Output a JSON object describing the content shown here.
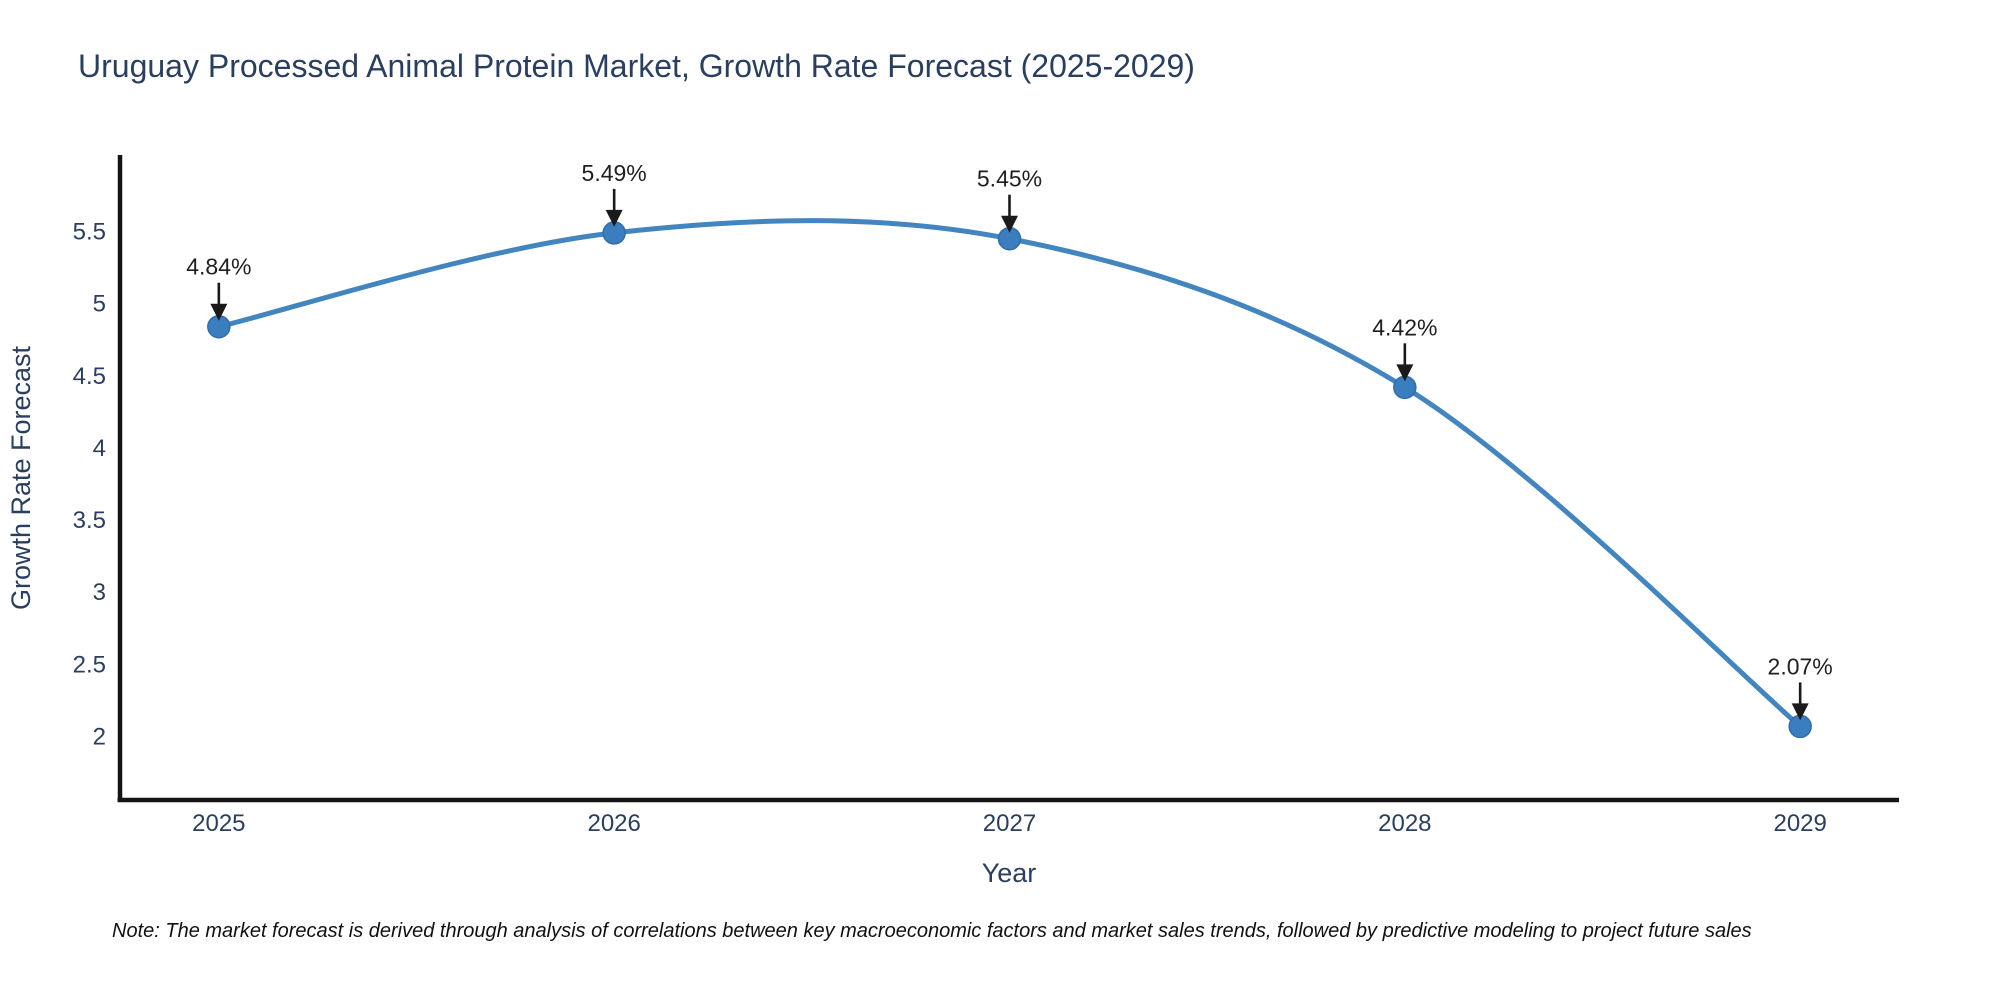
{
  "chart_data": {
    "type": "line",
    "title": "Uruguay Processed Animal Protein Market, Growth Rate Forecast (2025-2029)",
    "xlabel": "Year",
    "ylabel": "Growth Rate Forecast",
    "x": [
      2025,
      2026,
      2027,
      2028,
      2029
    ],
    "values": [
      4.84,
      5.49,
      5.45,
      4.42,
      2.07
    ],
    "point_labels": [
      "4.84%",
      "5.49%",
      "5.45%",
      "4.42%",
      "2.07%"
    ],
    "yticks": [
      2,
      2.5,
      3,
      3.5,
      4,
      4.5,
      5,
      5.5
    ],
    "xlim": [
      2024.75,
      2029.25
    ],
    "ylim": [
      1.56,
      6.03
    ],
    "line_shape": "spline",
    "grid": false,
    "legend_position": "none",
    "colors": {
      "line": "#4285bf",
      "marker_fill": "#3b7ec0",
      "marker_edge": "#336da8",
      "axis_line": "#141414",
      "axis_text": "#2a3f5f",
      "annotation_text": "#1f1f1f",
      "arrow": "#1a1a1a",
      "background": "#ffffff"
    }
  },
  "note": {
    "text": "Note: The market forecast is derived through analysis of correlations between key macroeconomic factors and market sales trends, followed by predictive modeling to project future sales"
  }
}
